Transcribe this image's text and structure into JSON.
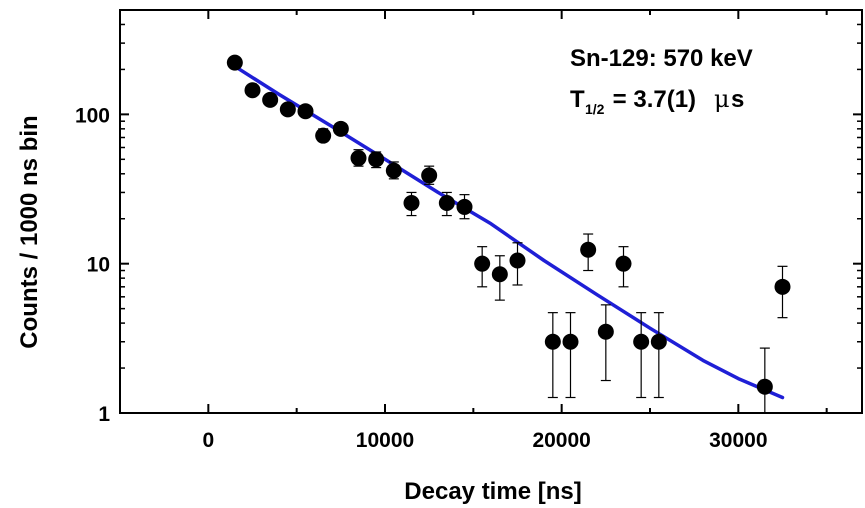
{
  "chart_data": {
    "type": "scatter",
    "title": "",
    "xlabel": "Decay time [ns]",
    "ylabel": "Counts / 1000 ns bin",
    "xlim": [
      -5000,
      37000
    ],
    "ylim": [
      1,
      500
    ],
    "yscale": "log",
    "grid": false,
    "x_ticks": [
      0,
      10000,
      20000,
      30000
    ],
    "x_tick_labels": [
      "0",
      "10000",
      "20000",
      "30000"
    ],
    "y_ticks": [
      1,
      10,
      100
    ],
    "y_tick_labels": [
      "1",
      "10",
      "100"
    ],
    "annotations": {
      "isotope": "Sn-129: 570 keV",
      "halflife_symbol": "T",
      "halflife_subscript": "1/2",
      "halflife_value": " = 3.7(1) ",
      "halflife_mu": "μ",
      "halflife_unit": "s"
    },
    "series": [
      {
        "kind": "points",
        "color": "#000000",
        "points": [
          {
            "x": 1500,
            "y": 222,
            "lo": 222,
            "hi": 222
          },
          {
            "x": 2500,
            "y": 145,
            "lo": 145,
            "hi": 145
          },
          {
            "x": 3500,
            "y": 125,
            "lo": 125,
            "hi": 125
          },
          {
            "x": 4500,
            "y": 108,
            "lo": 108,
            "hi": 108
          },
          {
            "x": 5500,
            "y": 105,
            "lo": 105,
            "hi": 105
          },
          {
            "x": 6500,
            "y": 72,
            "lo": 66,
            "hi": 80
          },
          {
            "x": 7500,
            "y": 80,
            "lo": 74,
            "hi": 86
          },
          {
            "x": 8500,
            "y": 51,
            "lo": 45,
            "hi": 58
          },
          {
            "x": 9500,
            "y": 50,
            "lo": 44,
            "hi": 56
          },
          {
            "x": 10500,
            "y": 42,
            "lo": 37,
            "hi": 48
          },
          {
            "x": 11500,
            "y": 25.5,
            "lo": 21,
            "hi": 30
          },
          {
            "x": 12500,
            "y": 39,
            "lo": 34,
            "hi": 45
          },
          {
            "x": 13500,
            "y": 25.5,
            "lo": 21,
            "hi": 30
          },
          {
            "x": 14500,
            "y": 24,
            "lo": 20,
            "hi": 29
          },
          {
            "x": 15500,
            "y": 10,
            "lo": 7,
            "hi": 13
          },
          {
            "x": 16500,
            "y": 8.5,
            "lo": 5.7,
            "hi": 11.3
          },
          {
            "x": 17500,
            "y": 10.5,
            "lo": 7.2,
            "hi": 13.8
          },
          {
            "x": 19500,
            "y": 3,
            "lo": 1.27,
            "hi": 4.7
          },
          {
            "x": 20500,
            "y": 3,
            "lo": 1.27,
            "hi": 4.7
          },
          {
            "x": 21500,
            "y": 12.4,
            "lo": 9,
            "hi": 15.8
          },
          {
            "x": 22500,
            "y": 3.5,
            "lo": 1.65,
            "hi": 5.3
          },
          {
            "x": 23500,
            "y": 10,
            "lo": 7,
            "hi": 13
          },
          {
            "x": 24500,
            "y": 3,
            "lo": 1.27,
            "hi": 4.7
          },
          {
            "x": 25500,
            "y": 3,
            "lo": 1.27,
            "hi": 4.7
          },
          {
            "x": 31500,
            "y": 1.5,
            "lo": 1,
            "hi": 2.72
          },
          {
            "x": 32500,
            "y": 7,
            "lo": 4.35,
            "hi": 9.6
          }
        ]
      },
      {
        "kind": "fit-line",
        "color": "#1f1fd6",
        "x": [
          1500,
          4000,
          7000,
          10000,
          13000,
          16000,
          19000,
          22000,
          25000,
          28000,
          30000,
          32500
        ],
        "y": [
          210,
          136,
          83,
          50,
          30,
          18.5,
          10.5,
          6.2,
          3.7,
          2.25,
          1.7,
          1.27
        ]
      }
    ]
  }
}
